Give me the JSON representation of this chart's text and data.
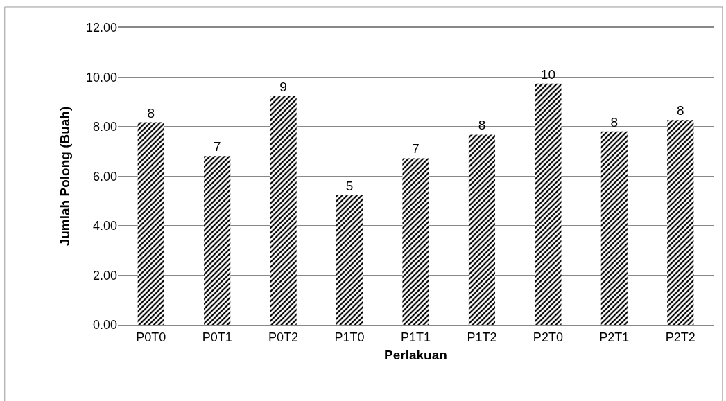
{
  "chart_data": {
    "type": "bar",
    "xlabel": "Perlakuan",
    "ylabel": "Jumlah Polong (Buah)",
    "categories": [
      "P0T0",
      "P0T1",
      "P0T2",
      "P1T0",
      "P1T1",
      "P1T2",
      "P2T0",
      "P2T1",
      "P2T2"
    ],
    "values": [
      8.18,
      6.82,
      9.24,
      5.24,
      6.73,
      7.68,
      9.74,
      7.81,
      8.27
    ],
    "value_labels": [
      "8",
      "7",
      "9",
      "5",
      "7",
      "8",
      "10",
      "8",
      "8"
    ],
    "color": "#000000",
    "ylim": [
      0,
      12
    ],
    "yticks": [
      {
        "value": 0,
        "label": "0.00"
      },
      {
        "value": 2,
        "label": "2.00"
      },
      {
        "value": 4,
        "label": "4.00"
      },
      {
        "value": 6,
        "label": "6.00"
      },
      {
        "value": 8,
        "label": "8.00"
      },
      {
        "value": 10,
        "label": "10.00"
      },
      {
        "value": 12,
        "label": "12.00"
      }
    ],
    "grid": "y"
  }
}
